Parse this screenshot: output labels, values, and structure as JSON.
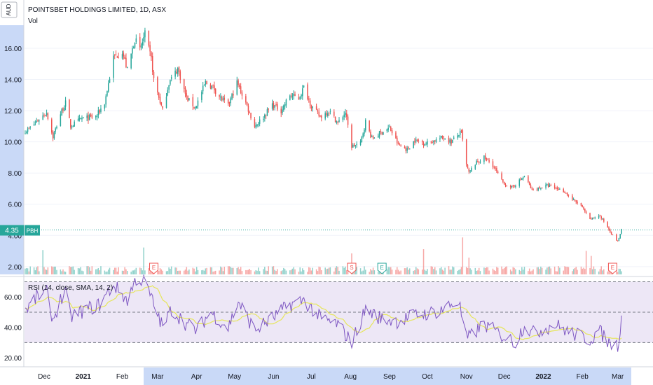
{
  "header": {
    "currency": "AUD",
    "title": "POINTSBET HOLDINGS LIMITED, 1D, ASX",
    "volume_label": "Vol"
  },
  "last_price": {
    "value": "4.35",
    "ticker": "PBH"
  },
  "rsi_panel": {
    "label": "RSI (14, close, SMA, 14, 2)"
  },
  "colors": {
    "up": "#26a69a",
    "down": "#ef5350",
    "rsi_line": "#7e57c2",
    "rsi_ma": "#e6e65a",
    "axis_band": "#c9d9f7",
    "rsi_band": "#ede7f6"
  },
  "events": [
    {
      "label": "E",
      "date": "2021-02-26",
      "color": "#ef5350"
    },
    {
      "label": "S",
      "date": "2021-08-02",
      "color": "#ef5350"
    },
    {
      "label": "E",
      "date": "2021-08-26",
      "color": "#26a69a"
    },
    {
      "label": "E",
      "date": "2022-02-25",
      "color": "#ef5350"
    }
  ],
  "chart_data": {
    "type": "candlestick",
    "title": "POINTSBET HOLDINGS LIMITED, 1D, ASX",
    "price_axis": {
      "ticks": [
        "16.00",
        "14.00",
        "12.00",
        "10.00",
        "8.00",
        "6.00",
        "4.00",
        "2.00"
      ],
      "range": [
        1.5,
        17.3
      ]
    },
    "rsi_axis": {
      "ticks": [
        "60.00",
        "40.00",
        "20.00"
      ],
      "range": [
        15,
        73
      ],
      "levels": [
        70,
        50,
        30
      ]
    },
    "x_axis": {
      "labels": [
        "Dec",
        "2021",
        "Feb",
        "Mar",
        "Apr",
        "May",
        "Jun",
        "Jul",
        "Aug",
        "Sep",
        "Oct",
        "Nov",
        "Dec",
        "2022",
        "Feb",
        "Mar"
      ]
    },
    "price_anchors": [
      [
        "2020-11-17",
        10.7
      ],
      [
        "2020-11-25",
        11.3
      ],
      [
        "2020-12-03",
        11.9
      ],
      [
        "2020-12-08",
        10.3
      ],
      [
        "2020-12-14",
        11.8
      ],
      [
        "2020-12-18",
        12.5
      ],
      [
        "2020-12-22",
        11.0
      ],
      [
        "2020-12-31",
        11.5
      ],
      [
        "2021-01-11",
        11.6
      ],
      [
        "2021-01-18",
        12.5
      ],
      [
        "2021-01-25",
        15.4
      ],
      [
        "2021-02-01",
        15.8
      ],
      [
        "2021-02-05",
        14.6
      ],
      [
        "2021-02-11",
        16.6
      ],
      [
        "2021-02-15",
        15.9
      ],
      [
        "2021-02-19",
        16.9
      ],
      [
        "2021-02-24",
        15.3
      ],
      [
        "2021-02-26",
        14.0
      ],
      [
        "2021-03-05",
        12.0
      ],
      [
        "2021-03-10",
        13.8
      ],
      [
        "2021-03-17",
        14.7
      ],
      [
        "2021-03-24",
        12.8
      ],
      [
        "2021-03-31",
        12.2
      ],
      [
        "2021-04-08",
        13.8
      ],
      [
        "2021-04-14",
        13.5
      ],
      [
        "2021-04-20",
        12.8
      ],
      [
        "2021-04-26",
        12.3
      ],
      [
        "2021-05-03",
        13.8
      ],
      [
        "2021-05-10",
        12.5
      ],
      [
        "2021-05-17",
        11.0
      ],
      [
        "2021-05-24",
        11.6
      ],
      [
        "2021-05-31",
        12.4
      ],
      [
        "2021-06-07",
        12.0
      ],
      [
        "2021-06-14",
        13.0
      ],
      [
        "2021-06-21",
        12.8
      ],
      [
        "2021-06-25",
        13.5
      ],
      [
        "2021-07-01",
        12.3
      ],
      [
        "2021-07-08",
        11.6
      ],
      [
        "2021-07-15",
        12.0
      ],
      [
        "2021-07-22",
        11.2
      ],
      [
        "2021-07-28",
        11.9
      ],
      [
        "2021-08-02",
        9.7
      ],
      [
        "2021-08-09",
        9.9
      ],
      [
        "2021-08-13",
        11.3
      ],
      [
        "2021-08-18",
        10.2
      ],
      [
        "2021-08-25",
        10.6
      ],
      [
        "2021-09-01",
        10.9
      ],
      [
        "2021-09-08",
        9.8
      ],
      [
        "2021-09-15",
        9.5
      ],
      [
        "2021-09-21",
        10.1
      ],
      [
        "2021-09-30",
        9.9
      ],
      [
        "2021-10-07",
        10.1
      ],
      [
        "2021-10-14",
        10.3
      ],
      [
        "2021-10-20",
        10.0
      ],
      [
        "2021-10-26",
        10.5
      ],
      [
        "2021-10-28",
        10.6
      ],
      [
        "2021-11-01",
        8.5
      ],
      [
        "2021-11-03",
        8.0
      ],
      [
        "2021-11-08",
        8.6
      ],
      [
        "2021-11-15",
        9.0
      ],
      [
        "2021-11-22",
        8.5
      ],
      [
        "2021-11-29",
        7.5
      ],
      [
        "2021-12-06",
        7.0
      ],
      [
        "2021-12-13",
        7.5
      ],
      [
        "2021-12-17",
        7.8
      ],
      [
        "2021-12-23",
        6.9
      ],
      [
        "2022-01-04",
        7.2
      ],
      [
        "2022-01-12",
        7.0
      ],
      [
        "2022-01-18",
        6.8
      ],
      [
        "2022-01-24",
        6.3
      ],
      [
        "2022-01-31",
        5.9
      ],
      [
        "2022-02-07",
        5.0
      ],
      [
        "2022-02-14",
        5.3
      ],
      [
        "2022-02-18",
        4.9
      ],
      [
        "2022-02-22",
        4.4
      ],
      [
        "2022-02-25",
        4.0
      ],
      [
        "2022-03-01",
        3.6
      ],
      [
        "2022-03-04",
        4.35
      ]
    ],
    "rsi_anchors": [
      [
        "2020-11-17",
        52
      ],
      [
        "2020-11-25",
        60
      ],
      [
        "2020-12-03",
        63
      ],
      [
        "2020-12-08",
        45
      ],
      [
        "2020-12-14",
        58
      ],
      [
        "2020-12-18",
        62
      ],
      [
        "2020-12-22",
        47
      ],
      [
        "2021-01-04",
        52
      ],
      [
        "2021-01-14",
        55
      ],
      [
        "2021-01-25",
        68
      ],
      [
        "2021-02-05",
        58
      ],
      [
        "2021-02-12",
        72
      ],
      [
        "2021-02-19",
        70
      ],
      [
        "2021-02-26",
        55
      ],
      [
        "2021-03-05",
        40
      ],
      [
        "2021-03-12",
        52
      ],
      [
        "2021-03-24",
        42
      ],
      [
        "2021-04-01",
        38
      ],
      [
        "2021-04-12",
        50
      ],
      [
        "2021-04-26",
        40
      ],
      [
        "2021-05-04",
        57
      ],
      [
        "2021-05-17",
        38
      ],
      [
        "2021-05-31",
        46
      ],
      [
        "2021-06-14",
        55
      ],
      [
        "2021-06-25",
        58
      ],
      [
        "2021-07-08",
        46
      ],
      [
        "2021-07-22",
        42
      ],
      [
        "2021-08-02",
        30
      ],
      [
        "2021-08-13",
        52
      ],
      [
        "2021-08-25",
        46
      ],
      [
        "2021-09-08",
        44
      ],
      [
        "2021-09-21",
        48
      ],
      [
        "2021-10-07",
        50
      ],
      [
        "2021-10-26",
        57
      ],
      [
        "2021-11-01",
        32
      ],
      [
        "2021-11-15",
        42
      ],
      [
        "2021-11-29",
        35
      ],
      [
        "2021-12-10",
        30
      ],
      [
        "2021-12-17",
        42
      ],
      [
        "2021-12-23",
        36
      ],
      [
        "2022-01-10",
        42
      ],
      [
        "2022-01-24",
        36
      ],
      [
        "2022-02-07",
        32
      ],
      [
        "2022-02-14",
        38
      ],
      [
        "2022-02-22",
        30
      ],
      [
        "2022-03-01",
        28
      ],
      [
        "2022-03-04",
        46
      ]
    ],
    "volume_spikes": [
      [
        "2020-11-30",
        5.8
      ],
      [
        "2021-02-18",
        6.4
      ],
      [
        "2021-08-02",
        5.0
      ],
      [
        "2021-09-28",
        6.0
      ],
      [
        "2021-10-29",
        8.8
      ],
      [
        "2021-11-03",
        4.0
      ],
      [
        "2022-02-04",
        5.6
      ],
      [
        "2022-02-08",
        4.4
      ]
    ],
    "date_range": [
      "2020-11-16",
      "2022-03-04"
    ]
  }
}
